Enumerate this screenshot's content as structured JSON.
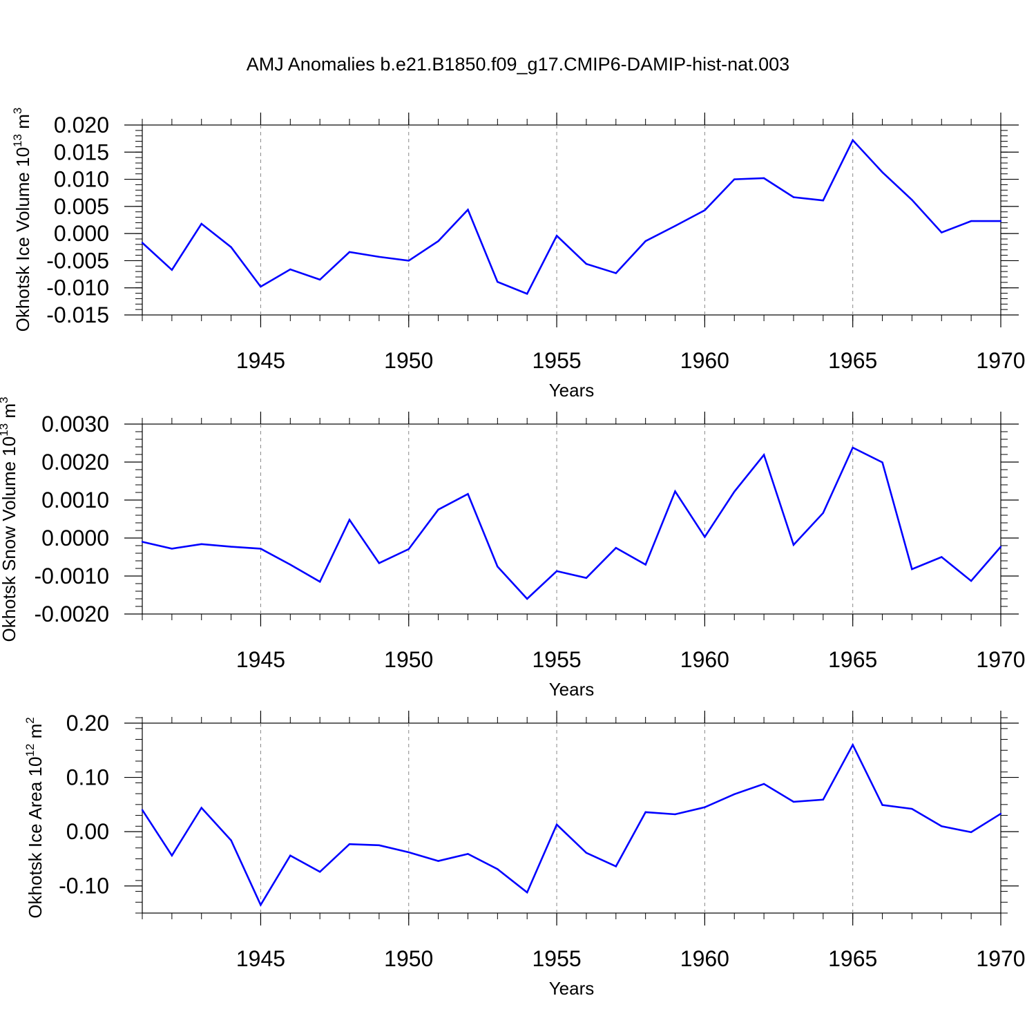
{
  "title": "AMJ Anomalies b.e21.B1850.f09_g17.CMIP6-DAMIP-hist-nat.003",
  "chart_data": [
    {
      "type": "line",
      "xlabel": "Years",
      "ylabel_main": "Okhotsk Ice Volume 10",
      "ylabel_exp": "13",
      "ylabel_unit": " m",
      "ylabel_unit_exp": "3",
      "xlim": [
        1941,
        1970
      ],
      "ylim": [
        -0.015,
        0.02
      ],
      "xticks": [
        1945,
        1950,
        1955,
        1960,
        1965,
        1970
      ],
      "yticks": [
        "0.020",
        "0.015",
        "0.010",
        "0.005",
        "0.000",
        "-0.005",
        "-0.010",
        "-0.015"
      ],
      "color": "#0000ff",
      "x": [
        1941,
        1942,
        1943,
        1944,
        1945,
        1946,
        1947,
        1948,
        1949,
        1950,
        1951,
        1952,
        1953,
        1954,
        1955,
        1956,
        1957,
        1958,
        1959,
        1960,
        1961,
        1962,
        1963,
        1964,
        1965,
        1966,
        1967,
        1968,
        1969,
        1970
      ],
      "y": [
        -0.0017,
        -0.0067,
        0.0018,
        -0.0025,
        -0.0098,
        -0.0066,
        -0.0085,
        -0.0034,
        -0.0043,
        -0.005,
        -0.0014,
        0.0044,
        -0.0089,
        -0.0111,
        -0.0004,
        -0.0056,
        -0.0073,
        -0.0014,
        0.0014,
        0.0043,
        0.01,
        0.0102,
        0.0067,
        0.0061,
        0.0172,
        0.0113,
        0.0062,
        0.0002,
        0.0023,
        0.0023
      ]
    },
    {
      "type": "line",
      "xlabel": "Years",
      "ylabel_main": "Okhotsk Snow Volume 10",
      "ylabel_exp": "13",
      "ylabel_unit": " m",
      "ylabel_unit_exp": "3",
      "xlim": [
        1941,
        1970
      ],
      "ylim": [
        -0.002,
        0.003
      ],
      "xticks": [
        1945,
        1950,
        1955,
        1960,
        1965,
        1970
      ],
      "yticks": [
        "0.0030",
        "0.0020",
        "0.0010",
        "0.0000",
        "-0.0010",
        "-0.0020"
      ],
      "color": "#0000ff",
      "x": [
        1941,
        1942,
        1943,
        1944,
        1945,
        1946,
        1947,
        1948,
        1949,
        1950,
        1951,
        1952,
        1953,
        1954,
        1955,
        1956,
        1957,
        1958,
        1959,
        1960,
        1961,
        1962,
        1963,
        1964,
        1965,
        1966,
        1967,
        1968,
        1969,
        1970
      ],
      "y": [
        -0.0001,
        -0.00028,
        -0.00016,
        -0.00023,
        -0.00028,
        -0.0007,
        -0.00115,
        0.00048,
        -0.00066,
        -0.00029,
        0.00075,
        0.00116,
        -0.00075,
        -0.0016,
        -0.00087,
        -0.00105,
        -0.00026,
        -0.0007,
        0.00123,
        3e-05,
        0.00122,
        0.00219,
        -0.00018,
        0.00066,
        0.00238,
        0.00199,
        -0.00082,
        -0.0005,
        -0.00113,
        -0.00023
      ]
    },
    {
      "type": "line",
      "xlabel": "Years",
      "ylabel_main": "Okhotsk Ice Area 10",
      "ylabel_exp": "12",
      "ylabel_unit": " m",
      "ylabel_unit_exp": "2",
      "xlim": [
        1941,
        1970
      ],
      "ylim": [
        -0.15,
        0.2
      ],
      "xticks": [
        1945,
        1950,
        1955,
        1960,
        1965,
        1970
      ],
      "yticks": [
        "0.20",
        "0.10",
        "0.00",
        "-0.10"
      ],
      "color": "#0000ff",
      "x": [
        1941,
        1942,
        1943,
        1944,
        1945,
        1946,
        1947,
        1948,
        1949,
        1950,
        1951,
        1952,
        1953,
        1954,
        1955,
        1956,
        1957,
        1958,
        1959,
        1960,
        1961,
        1962,
        1963,
        1964,
        1965,
        1966,
        1967,
        1968,
        1969,
        1970
      ],
      "y": [
        0.04,
        -0.044,
        0.044,
        -0.016,
        -0.135,
        -0.044,
        -0.074,
        -0.023,
        -0.025,
        -0.038,
        -0.054,
        -0.041,
        -0.069,
        -0.112,
        0.013,
        -0.039,
        -0.064,
        0.036,
        0.032,
        0.045,
        0.069,
        0.088,
        0.055,
        0.059,
        0.16,
        0.049,
        0.042,
        0.01,
        -0.001,
        0.033
      ]
    }
  ]
}
